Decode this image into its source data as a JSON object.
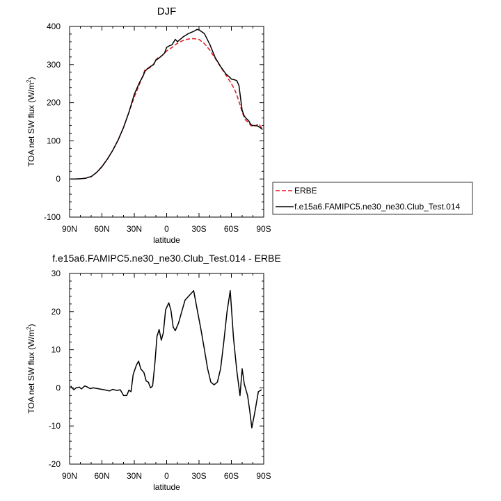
{
  "chart_data": [
    {
      "type": "line",
      "title": "DJF",
      "xlabel": "latitude",
      "ylabel": "TOA net SW flux (W/m",
      "ylabel_sup": "2",
      "ylabel_end": ")",
      "xlim": [
        90,
        -90
      ],
      "ylim": [
        -100,
        400
      ],
      "xticks": [
        90,
        60,
        30,
        0,
        -30,
        -60,
        -90
      ],
      "xtick_labels": [
        "90N",
        "60N",
        "30N",
        "0",
        "30S",
        "60S",
        "90S"
      ],
      "yticks": [
        -100,
        0,
        100,
        200,
        300,
        400
      ],
      "ytick_labels": [
        "-100",
        "0",
        "100",
        "200",
        "300",
        "400"
      ],
      "legend_placement": "outside-right",
      "series": [
        {
          "name": "ERBE",
          "color": "#e8171c",
          "dash": "dashed",
          "points": [
            [
              89,
              0
            ],
            [
              85,
              0
            ],
            [
              80,
              0.5
            ],
            [
              75,
              2
            ],
            [
              70,
              6
            ],
            [
              65,
              17
            ],
            [
              60,
              33
            ],
            [
              55,
              52
            ],
            [
              50,
              75
            ],
            [
              45,
              103
            ],
            [
              40,
              135
            ],
            [
              35,
              175
            ],
            [
              30,
              215
            ],
            [
              25,
              250
            ],
            [
              22,
              272
            ],
            [
              20,
              287
            ],
            [
              17,
              290
            ],
            [
              15,
              292
            ],
            [
              12,
              302
            ],
            [
              10,
              312
            ],
            [
              8,
              318
            ],
            [
              5,
              322
            ],
            [
              2,
              330
            ],
            [
              0,
              336
            ],
            [
              -5,
              345
            ],
            [
              -10,
              356
            ],
            [
              -15,
              363
            ],
            [
              -20,
              367
            ],
            [
              -25,
              368
            ],
            [
              -28,
              367
            ],
            [
              -30,
              366
            ],
            [
              -35,
              355
            ],
            [
              -40,
              338
            ],
            [
              -45,
              316
            ],
            [
              -50,
              294
            ],
            [
              -55,
              272
            ],
            [
              -60,
              250
            ],
            [
              -63,
              235
            ],
            [
              -65,
              220
            ],
            [
              -68,
              195
            ],
            [
              -70,
              175
            ],
            [
              -73,
              155
            ],
            [
              -76,
              148
            ],
            [
              -78,
              140
            ],
            [
              -80,
              138
            ],
            [
              -83,
              140
            ],
            [
              -85,
              145
            ],
            [
              -88,
              135
            ],
            [
              -89,
              130
            ]
          ]
        },
        {
          "name": "f.e15a6.FAMIPC5.ne30_ne30.Club_Test.014",
          "color": "#000000",
          "dash": "solid",
          "points": [
            [
              89,
              0
            ],
            [
              85,
              0
            ],
            [
              80,
              0.5
            ],
            [
              75,
              2
            ],
            [
              72,
              5
            ],
            [
              70,
              6
            ],
            [
              65,
              17
            ],
            [
              60,
              32
            ],
            [
              55,
              52
            ],
            [
              50,
              75
            ],
            [
              45,
              102
            ],
            [
              40,
              135
            ],
            [
              35,
              175
            ],
            [
              30,
              222
            ],
            [
              27,
              241
            ],
            [
              25,
              254
            ],
            [
              22,
              269
            ],
            [
              20,
              283
            ],
            [
              17,
              291
            ],
            [
              15,
              295
            ],
            [
              12,
              300
            ],
            [
              10,
              312
            ],
            [
              8,
              315
            ],
            [
              5,
              322
            ],
            [
              2,
              330
            ],
            [
              0,
              345
            ],
            [
              -3,
              350
            ],
            [
              -5,
              352
            ],
            [
              -8,
              366
            ],
            [
              -10,
              360
            ],
            [
              -15,
              372
            ],
            [
              -20,
              381
            ],
            [
              -25,
              387
            ],
            [
              -28,
              392
            ],
            [
              -30,
              391
            ],
            [
              -35,
              381
            ],
            [
              -40,
              353
            ],
            [
              -45,
              318
            ],
            [
              -50,
              295
            ],
            [
              -55,
              275
            ],
            [
              -58,
              268
            ],
            [
              -60,
              262
            ],
            [
              -63,
              260
            ],
            [
              -65,
              258
            ],
            [
              -67,
              245
            ],
            [
              -70,
              180
            ],
            [
              -72,
              165
            ],
            [
              -74,
              158
            ],
            [
              -76,
              153
            ],
            [
              -78,
              143
            ],
            [
              -80,
              140
            ],
            [
              -83,
              140
            ],
            [
              -85,
              138
            ],
            [
              -88,
              132
            ],
            [
              -89,
              130
            ]
          ]
        }
      ]
    },
    {
      "type": "line",
      "title": "f.e15a6.FAMIPC5.ne30_ne30.Club_Test.014 - ERBE",
      "xlabel": "latitude",
      "ylabel": "TOA net SW flux (W/m",
      "ylabel_sup": "2",
      "ylabel_end": ")",
      "xlim": [
        90,
        -90
      ],
      "ylim": [
        -20,
        30
      ],
      "xticks": [
        90,
        60,
        30,
        0,
        -30,
        -60,
        -90
      ],
      "xtick_labels": [
        "90N",
        "60N",
        "30N",
        "0",
        "30S",
        "60S",
        "90S"
      ],
      "yticks": [
        -20,
        -10,
        0,
        10,
        20,
        30
      ],
      "ytick_labels": [
        "-20",
        "-10",
        "0",
        "10",
        "20",
        "30"
      ],
      "series": [
        {
          "color": "#000000",
          "dash": "solid",
          "points": [
            [
              89,
              0.5
            ],
            [
              86,
              -0.5
            ],
            [
              84,
              0
            ],
            [
              81,
              0.2
            ],
            [
              79,
              -0.3
            ],
            [
              76,
              0.5
            ],
            [
              74,
              0.3
            ],
            [
              71,
              -0.2
            ],
            [
              68,
              0
            ],
            [
              64,
              -0.2
            ],
            [
              58,
              -0.5
            ],
            [
              53,
              -0.8
            ],
            [
              50,
              -0.4
            ],
            [
              46,
              -0.7
            ],
            [
              43,
              -0.5
            ],
            [
              40,
              -2
            ],
            [
              37,
              -2
            ],
            [
              35,
              -0.6
            ],
            [
              33,
              -1
            ],
            [
              31,
              3.5
            ],
            [
              28,
              6
            ],
            [
              26,
              7
            ],
            [
              24,
              5
            ],
            [
              21,
              4
            ],
            [
              19,
              1.8
            ],
            [
              17,
              1.5
            ],
            [
              15,
              0
            ],
            [
              13,
              0.5
            ],
            [
              11,
              6
            ],
            [
              9,
              13.5
            ],
            [
              7,
              15.3
            ],
            [
              5,
              12.5
            ],
            [
              3,
              14.5
            ],
            [
              1,
              20.5
            ],
            [
              -2,
              22.3
            ],
            [
              -4,
              20.3
            ],
            [
              -6,
              16
            ],
            [
              -8,
              15
            ],
            [
              -11,
              17
            ],
            [
              -14,
              20
            ],
            [
              -17,
              23
            ],
            [
              -25,
              25.5
            ],
            [
              -28,
              21
            ],
            [
              -32,
              15
            ],
            [
              -35,
              10
            ],
            [
              -38,
              5
            ],
            [
              -41,
              1.5
            ],
            [
              -44,
              0.8
            ],
            [
              -47,
              1.5
            ],
            [
              -50,
              5
            ],
            [
              -53,
              12
            ],
            [
              -56,
              20
            ],
            [
              -59,
              25.5
            ],
            [
              -62,
              13
            ],
            [
              -65,
              4.5
            ],
            [
              -68,
              -2
            ],
            [
              -70,
              5
            ],
            [
              -72,
              1
            ],
            [
              -75,
              -2
            ],
            [
              -77,
              -6
            ],
            [
              -79,
              -10.5
            ],
            [
              -82,
              -6
            ],
            [
              -85,
              -1
            ],
            [
              -88,
              -0.5
            ]
          ]
        }
      ]
    }
  ]
}
